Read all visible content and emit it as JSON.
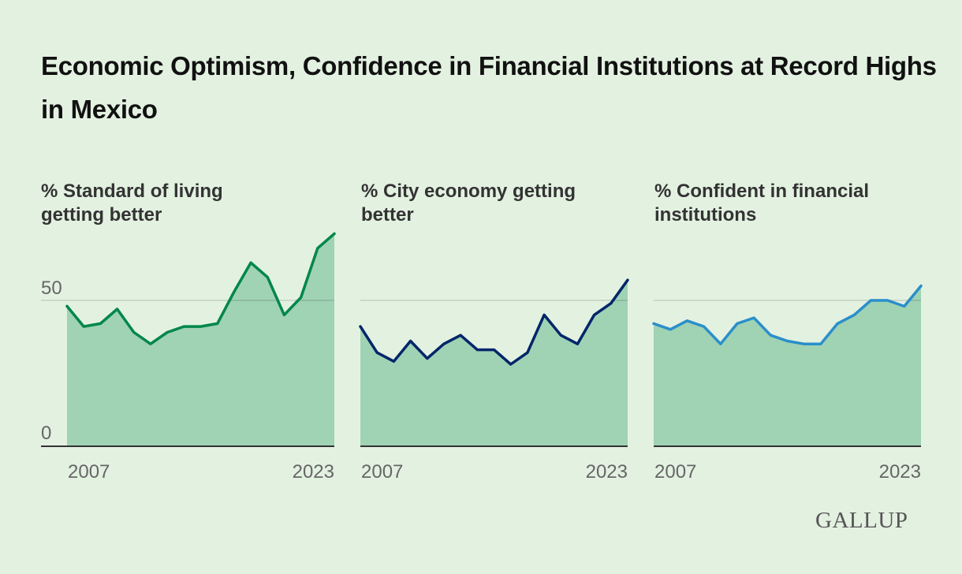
{
  "title": "Economic Optimism, Confidence in Financial Institutions at Record Highs in Mexico",
  "logo": "GALLUP",
  "chart_data": [
    {
      "type": "area",
      "title": "% Standard of living getting better",
      "x": [
        2007,
        2008,
        2009,
        2010,
        2011,
        2012,
        2013,
        2014,
        2015,
        2016,
        2017,
        2018,
        2019,
        2020,
        2021,
        2022,
        2023
      ],
      "values": [
        48,
        41,
        42,
        47,
        39,
        35,
        39,
        41,
        41,
        42,
        53,
        63,
        58,
        45,
        51,
        68,
        73
      ],
      "x_tick_labels": [
        "2007",
        "2023"
      ],
      "y_tick_labels": [
        "0",
        "50"
      ],
      "ylim": [
        0,
        100
      ],
      "line_color": "#00874a",
      "fill_color": "#a0d2b4"
    },
    {
      "type": "area",
      "title": "% City economy getting better",
      "x": [
        2007,
        2008,
        2009,
        2010,
        2011,
        2012,
        2013,
        2014,
        2015,
        2016,
        2017,
        2018,
        2019,
        2020,
        2021,
        2022,
        2023
      ],
      "values": [
        41,
        32,
        29,
        36,
        30,
        35,
        38,
        33,
        33,
        28,
        32,
        45,
        38,
        35,
        45,
        49,
        57
      ],
      "x_tick_labels": [
        "2007",
        "2023"
      ],
      "ylim": [
        0,
        100
      ],
      "line_color": "#00256a",
      "fill_color": "#a0d2b4"
    },
    {
      "type": "area",
      "title": "% Confident in financial institutions",
      "x": [
        2007,
        2008,
        2009,
        2010,
        2011,
        2012,
        2013,
        2014,
        2015,
        2016,
        2017,
        2018,
        2019,
        2020,
        2021,
        2022,
        2023
      ],
      "values": [
        42,
        40,
        43,
        41,
        35,
        42,
        44,
        38,
        36,
        35,
        35,
        42,
        45,
        50,
        50,
        48,
        55
      ],
      "x_tick_labels": [
        "2007",
        "2023"
      ],
      "ylim": [
        0,
        100
      ],
      "line_color": "#2a8fca",
      "fill_color": "#a0d2b4"
    }
  ]
}
